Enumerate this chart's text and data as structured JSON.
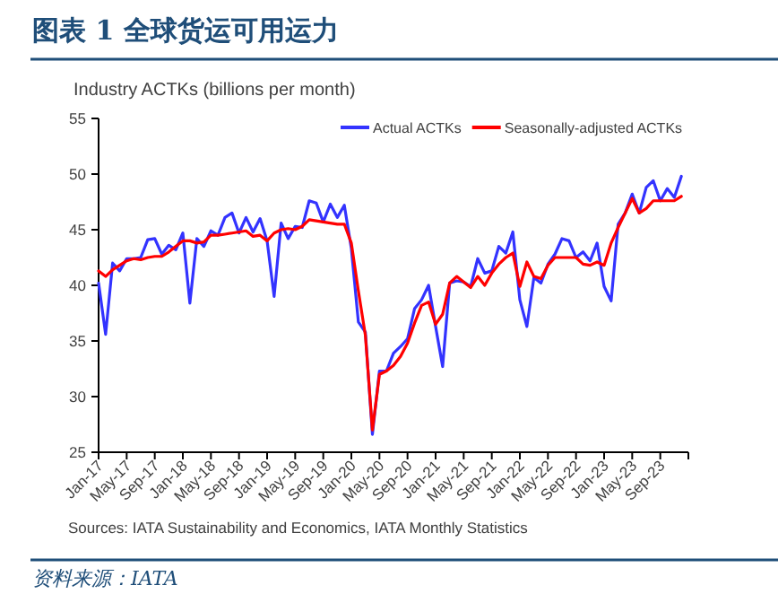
{
  "chart_data": {
    "type": "line",
    "title": "图表 1 全球货运可用运力",
    "ylabel": "Industry ACTKs (billions per month)",
    "annotations": [
      "Sources: IATA Sustainability and Economics, IATA Monthly Statistics",
      "资料来源：IATA"
    ],
    "x": [
      "2017-01",
      "2017-02",
      "2017-03",
      "2017-04",
      "2017-05",
      "2017-06",
      "2017-07",
      "2017-08",
      "2017-09",
      "2017-10",
      "2017-11",
      "2017-12",
      "2018-01",
      "2018-02",
      "2018-03",
      "2018-04",
      "2018-05",
      "2018-06",
      "2018-07",
      "2018-08",
      "2018-09",
      "2018-10",
      "2018-11",
      "2018-12",
      "2019-01",
      "2019-02",
      "2019-03",
      "2019-04",
      "2019-05",
      "2019-06",
      "2019-07",
      "2019-08",
      "2019-09",
      "2019-10",
      "2019-11",
      "2019-12",
      "2020-01",
      "2020-02",
      "2020-03",
      "2020-04",
      "2020-05",
      "2020-06",
      "2020-07",
      "2020-08",
      "2020-09",
      "2020-10",
      "2020-11",
      "2020-12",
      "2021-01",
      "2021-02",
      "2021-03",
      "2021-04",
      "2021-05",
      "2021-06",
      "2021-07",
      "2021-08",
      "2021-09",
      "2021-10",
      "2021-11",
      "2021-12",
      "2022-01",
      "2022-02",
      "2022-03",
      "2022-04",
      "2022-05",
      "2022-06",
      "2022-07",
      "2022-08",
      "2022-09",
      "2022-10",
      "2022-11",
      "2022-12",
      "2023-01",
      "2023-02",
      "2023-03",
      "2023-04",
      "2023-05",
      "2023-06",
      "2023-07",
      "2023-08",
      "2023-09",
      "2023-10",
      "2023-11",
      "2023-12"
    ],
    "series": [
      {
        "name": "Actual ACTKs",
        "color": "#3333ff",
        "values": [
          40.2,
          35.6,
          42.0,
          41.3,
          42.4,
          42.4,
          42.5,
          44.1,
          44.2,
          42.8,
          43.6,
          43.2,
          44.7,
          38.4,
          44.2,
          43.5,
          44.9,
          44.5,
          46.1,
          46.5,
          44.7,
          46.1,
          44.8,
          46.0,
          44.0,
          39.0,
          45.6,
          44.2,
          45.3,
          45.2,
          47.6,
          47.4,
          45.7,
          47.3,
          46.1,
          47.2,
          43.3,
          36.7,
          35.8,
          26.6,
          32.3,
          32.3,
          33.9,
          34.5,
          35.2,
          37.9,
          38.7,
          40.0,
          36.3,
          32.7,
          40.2,
          40.4,
          40.3,
          39.9,
          42.4,
          41.1,
          41.3,
          43.5,
          42.9,
          44.8,
          38.7,
          36.3,
          40.7,
          40.2,
          41.9,
          42.8,
          44.2,
          44.0,
          42.5,
          43.0,
          42.2,
          43.8,
          39.9,
          38.6,
          45.5,
          46.5,
          48.2,
          46.5,
          48.8,
          49.4,
          47.6,
          48.7,
          47.9,
          49.8
        ]
      },
      {
        "name": "Seasonally-adjusted ACTKs",
        "color": "#ff0000",
        "values": [
          41.3,
          40.8,
          41.4,
          41.8,
          42.2,
          42.4,
          42.3,
          42.5,
          42.6,
          42.6,
          43.0,
          43.5,
          44.0,
          44.0,
          43.8,
          43.9,
          44.5,
          44.5,
          44.6,
          44.7,
          44.8,
          44.9,
          44.4,
          44.5,
          44.0,
          44.7,
          45.0,
          45.1,
          45.0,
          45.3,
          45.9,
          45.8,
          45.7,
          45.6,
          45.5,
          45.5,
          43.8,
          39.5,
          35.5,
          27.0,
          32.0,
          32.3,
          32.8,
          33.6,
          34.8,
          36.6,
          38.2,
          38.5,
          36.5,
          37.4,
          40.2,
          40.8,
          40.3,
          39.8,
          40.8,
          40.0,
          41.1,
          41.9,
          42.5,
          42.9,
          39.9,
          42.1,
          40.8,
          40.6,
          41.8,
          42.5,
          42.5,
          42.5,
          42.5,
          41.9,
          41.8,
          42.1,
          41.8,
          43.8,
          45.2,
          46.5,
          47.8,
          46.5,
          46.9,
          47.6,
          47.6,
          47.6,
          47.6,
          48.0
        ]
      }
    ],
    "xlim": [
      "2017-01",
      "2024-01"
    ],
    "xticks": [
      {
        "value": "2017-01",
        "label": "Jan-17"
      },
      {
        "value": "2017-05",
        "label": "May-17"
      },
      {
        "value": "2017-09",
        "label": "Sep-17"
      },
      {
        "value": "2018-01",
        "label": "Jan-18"
      },
      {
        "value": "2018-05",
        "label": "May-18"
      },
      {
        "value": "2018-09",
        "label": "Sep-18"
      },
      {
        "value": "2019-01",
        "label": "Jan-19"
      },
      {
        "value": "2019-05",
        "label": "May-19"
      },
      {
        "value": "2019-09",
        "label": "Sep-19"
      },
      {
        "value": "2020-01",
        "label": "Jan-20"
      },
      {
        "value": "2020-05",
        "label": "May-20"
      },
      {
        "value": "2020-09",
        "label": "Sep-20"
      },
      {
        "value": "2021-01",
        "label": "Jan-21"
      },
      {
        "value": "2021-05",
        "label": "May-21"
      },
      {
        "value": "2021-09",
        "label": "Sep-21"
      },
      {
        "value": "2022-01",
        "label": "Jan-22"
      },
      {
        "value": "2022-05",
        "label": "May-22"
      },
      {
        "value": "2022-09",
        "label": "Sep-22"
      },
      {
        "value": "2023-01",
        "label": "Jan-23"
      },
      {
        "value": "2023-05",
        "label": "May-23"
      },
      {
        "value": "2023-09",
        "label": "Sep-23"
      },
      {
        "value": "2024-01",
        "label": null
      }
    ],
    "ylim": [
      25,
      55
    ],
    "yticks": [
      25,
      30,
      35,
      40,
      45,
      50,
      55
    ],
    "legend": "top right",
    "grid": false,
    "marker": "none",
    "line_style": "solid"
  }
}
